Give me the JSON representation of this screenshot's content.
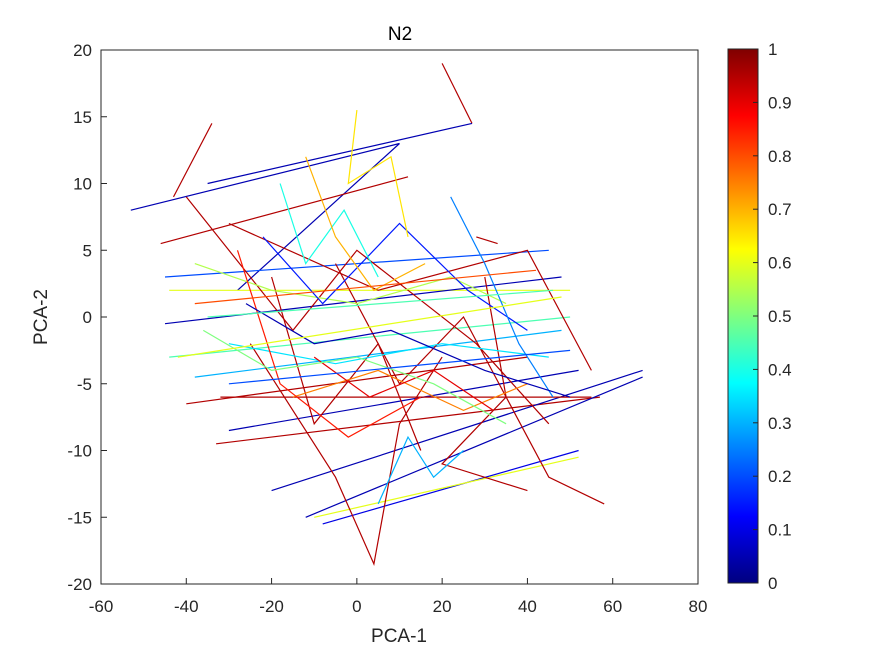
{
  "chart_data": {
    "type": "line",
    "title": "N2",
    "xlabel": "PCA-1",
    "ylabel": "PCA-2",
    "xlim": [
      -60,
      80
    ],
    "ylim": [
      -20,
      20
    ],
    "xticks": [
      "-60",
      "-40",
      "-20",
      "0",
      "20",
      "40",
      "60",
      "80"
    ],
    "yticks": [
      "20",
      "15",
      "10",
      "5",
      "0",
      "-5",
      "-10",
      "-15",
      "-20"
    ],
    "grid": false,
    "colormap": "jet",
    "colorbar": {
      "range": [
        0,
        1
      ],
      "ticks": [
        "1",
        "0.9",
        "0.8",
        "0.7",
        "0.6",
        "0.5",
        "0.4",
        "0.3",
        "0.2",
        "0.1",
        "0"
      ],
      "colors": [
        "#00007f",
        "#0000ff",
        "#007fff",
        "#00ffff",
        "#7fff7f",
        "#ffff00",
        "#ff7f00",
        "#ff0000",
        "#7f0000"
      ]
    },
    "series": [
      {
        "c": 0.05,
        "points": [
          [
            -53,
            8
          ],
          [
            10,
            13
          ]
        ]
      },
      {
        "c": 0.05,
        "points": [
          [
            10,
            13
          ],
          [
            -28,
            2
          ]
        ]
      },
      {
        "c": 0.95,
        "points": [
          [
            20,
            19
          ],
          [
            27,
            14.5
          ]
        ]
      },
      {
        "c": 0.05,
        "points": [
          [
            27,
            14.5
          ],
          [
            -35,
            10
          ]
        ]
      },
      {
        "c": 0.95,
        "points": [
          [
            -34,
            14.5
          ],
          [
            -43,
            9
          ]
        ]
      },
      {
        "c": 0.95,
        "points": [
          [
            -46,
            5.5
          ],
          [
            12,
            10.5
          ]
        ]
      },
      {
        "c": 0.2,
        "points": [
          [
            -45,
            3
          ],
          [
            45,
            5
          ]
        ]
      },
      {
        "c": 0.6,
        "points": [
          [
            -44,
            2
          ],
          [
            50,
            2
          ]
        ]
      },
      {
        "c": 0.05,
        "points": [
          [
            -45,
            -0.5
          ],
          [
            48,
            3
          ]
        ]
      },
      {
        "c": 0.45,
        "points": [
          [
            -44,
            -3
          ],
          [
            50,
            0
          ]
        ]
      },
      {
        "c": 0.95,
        "points": [
          [
            -40,
            -6.5
          ],
          [
            40,
            -3
          ]
        ]
      },
      {
        "c": 0.3,
        "points": [
          [
            -38,
            -4.5
          ],
          [
            48,
            -1
          ]
        ]
      },
      {
        "c": 0.05,
        "points": [
          [
            -30,
            -8.5
          ],
          [
            52,
            -4
          ]
        ]
      },
      {
        "c": 0.95,
        "points": [
          [
            -33,
            -9.5
          ],
          [
            57,
            -6
          ]
        ]
      },
      {
        "c": 0.05,
        "points": [
          [
            -20,
            -13
          ],
          [
            67,
            -4
          ]
        ]
      },
      {
        "c": 0.05,
        "points": [
          [
            -12,
            -15
          ],
          [
            67,
            -4.5
          ]
        ]
      },
      {
        "c": 0.1,
        "points": [
          [
            -8,
            -15.5
          ],
          [
            52,
            -10
          ]
        ]
      },
      {
        "c": 0.6,
        "points": [
          [
            -10,
            -15
          ],
          [
            52,
            -10.5
          ]
        ]
      },
      {
        "c": 0.95,
        "points": [
          [
            -32,
            -6
          ],
          [
            55,
            -6
          ]
        ]
      },
      {
        "c": 0.95,
        "points": [
          [
            -40,
            9
          ],
          [
            -15,
            -1
          ],
          [
            0,
            5
          ],
          [
            28,
            -2
          ],
          [
            45,
            -8
          ]
        ]
      },
      {
        "c": 0.95,
        "points": [
          [
            -30,
            7
          ],
          [
            5,
            2
          ],
          [
            40,
            5
          ],
          [
            55,
            -4
          ]
        ]
      },
      {
        "c": 0.95,
        "points": [
          [
            -5,
            4
          ],
          [
            10,
            -5
          ],
          [
            25,
            0
          ],
          [
            45,
            -12
          ],
          [
            58,
            -14
          ]
        ]
      },
      {
        "c": 0.95,
        "points": [
          [
            -20,
            3
          ],
          [
            -10,
            -8
          ],
          [
            5,
            -2
          ],
          [
            15,
            -10
          ]
        ]
      },
      {
        "c": 0.95,
        "points": [
          [
            -25,
            -2
          ],
          [
            -5,
            -12
          ],
          [
            4,
            -18.5
          ],
          [
            10,
            -8
          ],
          [
            20,
            -3
          ]
        ]
      },
      {
        "c": 0.95,
        "points": [
          [
            30,
            3
          ],
          [
            35,
            -6
          ],
          [
            20,
            -11
          ],
          [
            40,
            -13
          ]
        ]
      },
      {
        "c": 0.55,
        "points": [
          [
            -38,
            4
          ],
          [
            -20,
            2
          ],
          [
            0,
            1
          ],
          [
            22,
            3
          ],
          [
            35,
            1
          ]
        ]
      },
      {
        "c": 0.35,
        "points": [
          [
            -30,
            -2
          ],
          [
            -5,
            -3.5
          ],
          [
            20,
            -2
          ],
          [
            45,
            -3
          ]
        ]
      },
      {
        "c": 0.15,
        "points": [
          [
            -22,
            6
          ],
          [
            -8,
            1
          ],
          [
            10,
            7
          ],
          [
            26,
            2
          ],
          [
            40,
            -1
          ]
        ]
      },
      {
        "c": 0.75,
        "points": [
          [
            -15,
            -6
          ],
          [
            5,
            -4
          ],
          [
            25,
            -7
          ],
          [
            40,
            -5
          ]
        ]
      },
      {
        "c": 0.85,
        "points": [
          [
            -28,
            5
          ],
          [
            -18,
            -5
          ],
          [
            -2,
            -9
          ],
          [
            15,
            -6
          ]
        ]
      },
      {
        "c": 0.4,
        "points": [
          [
            -18,
            10
          ],
          [
            -12,
            4
          ],
          [
            -3,
            8
          ],
          [
            5,
            3
          ]
        ]
      },
      {
        "c": 0.65,
        "points": [
          [
            0,
            15.5
          ],
          [
            -2,
            10
          ],
          [
            8,
            12
          ],
          [
            12,
            6
          ]
        ]
      },
      {
        "c": 0.25,
        "points": [
          [
            22,
            9
          ],
          [
            30,
            4
          ],
          [
            38,
            -2
          ],
          [
            46,
            -6
          ]
        ]
      },
      {
        "c": 0.9,
        "points": [
          [
            -10,
            -3
          ],
          [
            3,
            -6
          ],
          [
            18,
            -4
          ],
          [
            32,
            -7
          ]
        ]
      },
      {
        "c": 0.05,
        "points": [
          [
            -26,
            1
          ],
          [
            -10,
            -2
          ],
          [
            8,
            -1
          ],
          [
            30,
            -4
          ],
          [
            50,
            -6
          ]
        ]
      },
      {
        "c": 0.5,
        "points": [
          [
            -36,
            -1
          ],
          [
            -20,
            -4
          ],
          [
            0,
            -3
          ],
          [
            18,
            -5
          ],
          [
            35,
            -8
          ]
        ]
      },
      {
        "c": 0.7,
        "points": [
          [
            -12,
            12
          ],
          [
            -5,
            6
          ],
          [
            4,
            2
          ],
          [
            16,
            4
          ]
        ]
      },
      {
        "c": 0.3,
        "points": [
          [
            5,
            -14
          ],
          [
            12,
            -9
          ],
          [
            18,
            -12
          ],
          [
            25,
            -10
          ]
        ]
      },
      {
        "c": 0.95,
        "points": [
          [
            28,
            6
          ],
          [
            33,
            5.5
          ]
        ]
      },
      {
        "c": 0.6,
        "points": [
          [
            -42,
            -3
          ],
          [
            48,
            1.5
          ]
        ]
      },
      {
        "c": 0.45,
        "points": [
          [
            -35,
            0
          ],
          [
            46,
            2
          ]
        ]
      },
      {
        "c": 0.2,
        "points": [
          [
            -30,
            -5
          ],
          [
            50,
            -2.5
          ]
        ]
      },
      {
        "c": 0.8,
        "points": [
          [
            -38,
            1
          ],
          [
            42,
            3.5
          ]
        ]
      }
    ]
  }
}
